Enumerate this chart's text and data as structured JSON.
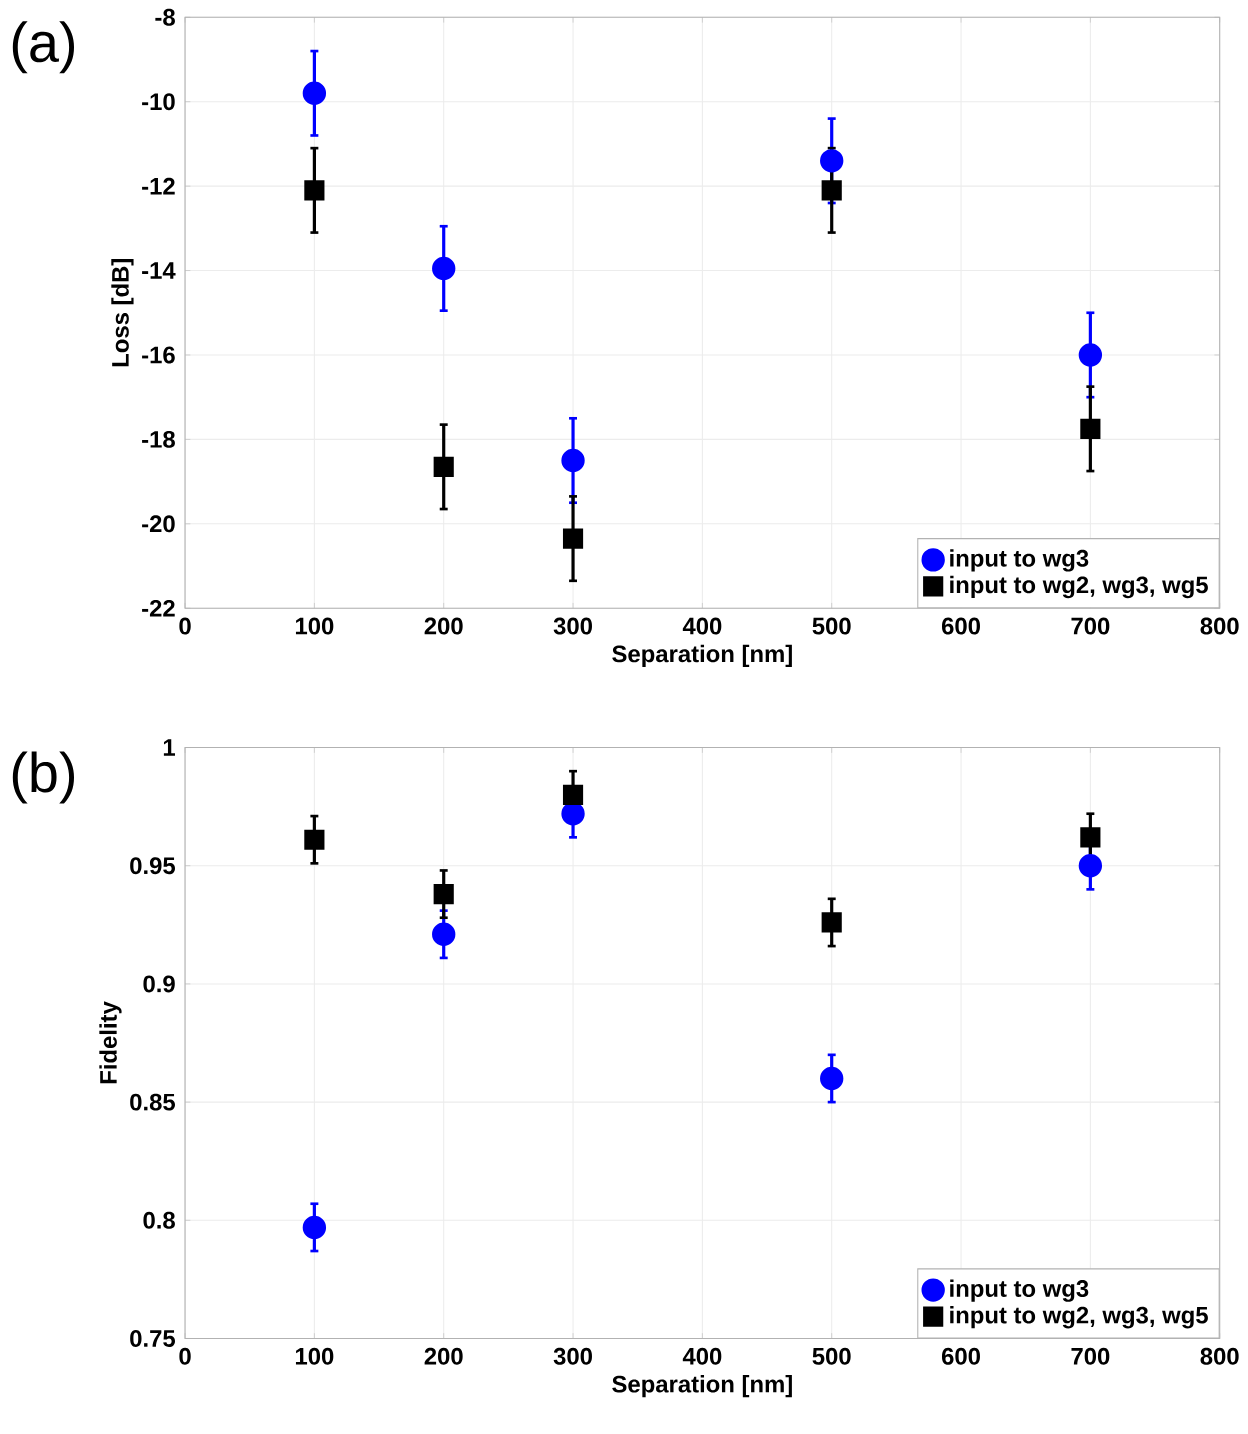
{
  "chart_data": [
    {
      "type": "scatter",
      "title": "(a)",
      "xlabel": "Separation [nm]",
      "ylabel": "Loss [dB]",
      "x": [
        100,
        200,
        300,
        500,
        700
      ],
      "xlim": [
        0,
        800
      ],
      "ylim": [
        -22,
        -8
      ],
      "xticks": [
        0,
        100,
        200,
        300,
        400,
        500,
        600,
        700,
        800
      ],
      "yticks": [
        -22,
        -20,
        -18,
        -16,
        -14,
        -12,
        -10,
        -8
      ],
      "grid": true,
      "legend": "bottom right",
      "series": [
        {
          "name": "input to wg3",
          "color": "#0000ff",
          "marker": "circle",
          "values": [
            -9.8,
            -13.95,
            -18.5,
            -11.4,
            -16.0
          ],
          "errors": [
            1,
            1,
            1,
            1,
            1
          ]
        },
        {
          "name": "input to wg2, wg3, wg5",
          "color": "#000000",
          "marker": "square",
          "values": [
            -12.1,
            -18.65,
            -20.35,
            -12.1,
            -17.75
          ],
          "errors": [
            1,
            1,
            1,
            1,
            1
          ]
        }
      ]
    },
    {
      "type": "scatter",
      "title": "(b)",
      "xlabel": "Separation [nm]",
      "ylabel": "Fidelity",
      "x": [
        100,
        200,
        300,
        500,
        700
      ],
      "xlim": [
        0,
        800
      ],
      "ylim": [
        0.75,
        1
      ],
      "xticks": [
        0,
        100,
        200,
        300,
        400,
        500,
        600,
        700,
        800
      ],
      "yticks": [
        0.75,
        0.8,
        0.85,
        0.9,
        0.95,
        1
      ],
      "grid": true,
      "legend": "bottom right",
      "series": [
        {
          "name": "input to wg3",
          "color": "#0000ff",
          "marker": "circle",
          "values": [
            0.797,
            0.921,
            0.972,
            0.86,
            0.95
          ],
          "errors": [
            0.01,
            0.01,
            0.01,
            0.01,
            0.01
          ]
        },
        {
          "name": "input to wg2, wg3, wg5",
          "color": "#000000",
          "marker": "square",
          "values": [
            0.961,
            0.938,
            0.98,
            0.926,
            0.962
          ],
          "errors": [
            0.01,
            0.01,
            0.01,
            0.01,
            0.01
          ]
        }
      ]
    }
  ]
}
